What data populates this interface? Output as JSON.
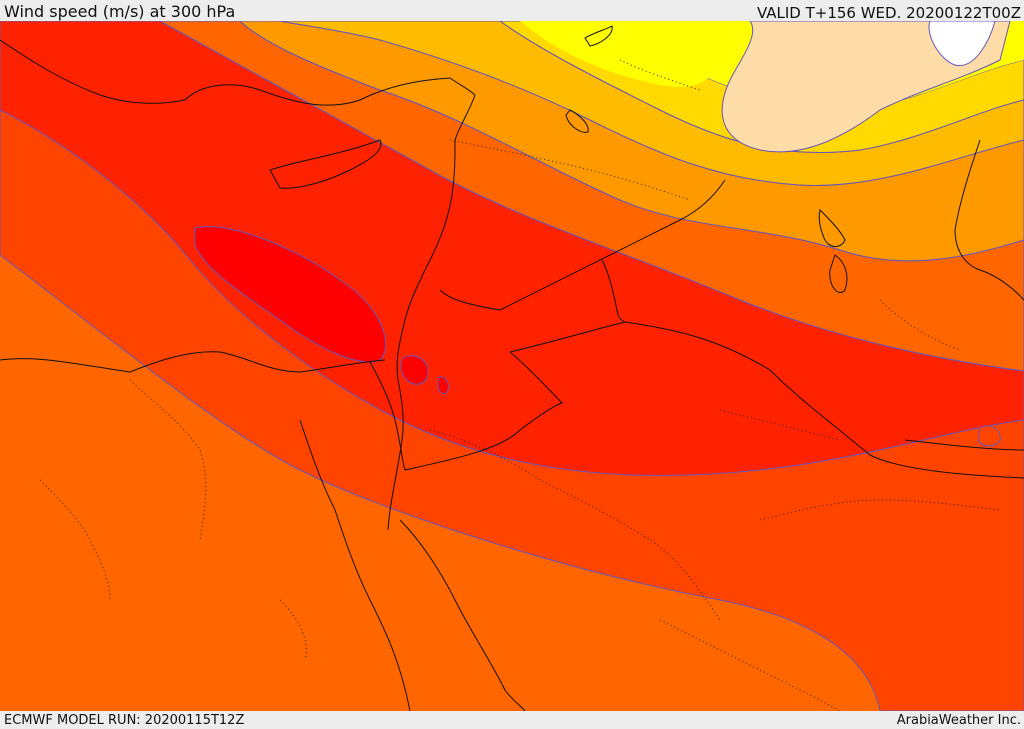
{
  "header": {
    "title": "Wind speed (m/s) at 300 hPa",
    "valid": "VALID T+156 WED. 20200122T00Z"
  },
  "footer": {
    "model_run": "ECMWF MODEL RUN: 20200115T12Z",
    "credit": "ArabiaWeather Inc."
  },
  "map": {
    "variable": "wind speed",
    "level": "300 hPa",
    "units": "m/s",
    "colors": {
      "peach": "#fedca8",
      "yellow": "#fffe00",
      "yellow_orange": "#ffd900",
      "gold": "#ffbb00",
      "light_orange": "#ff9900",
      "orange": "#ff6600",
      "red_orange": "#ff4400",
      "red": "#ff2200",
      "deep_red": "#ff0000",
      "white_core": "#ffffff",
      "contour": "#6655bb",
      "coastline": "#111111"
    }
  }
}
